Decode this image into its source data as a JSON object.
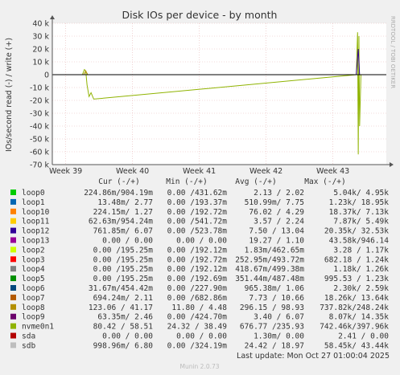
{
  "chart_data": {
    "type": "line",
    "title": "Disk IOs per device - by month",
    "ylabel": "IOs/second read (-) / write (+)",
    "watermark": "RRDTOOL / TOBI OETIKER",
    "footer": "Munin 2.0.73",
    "last_update": "Last update: Mon Oct 27 01:00:04 2025",
    "ylim": [
      -70000,
      40000
    ],
    "y_ticks": [
      {
        "label": "40 k",
        "value": 40000
      },
      {
        "label": "30 k",
        "value": 30000
      },
      {
        "label": "20 k",
        "value": 20000
      },
      {
        "label": "10 k",
        "value": 10000
      },
      {
        "label": "0",
        "value": 0
      },
      {
        "label": "-10 k",
        "value": -10000
      },
      {
        "label": "-20 k",
        "value": -20000
      },
      {
        "label": "-30 k",
        "value": -30000
      },
      {
        "label": "-40 k",
        "value": -40000
      },
      {
        "label": "-50 k",
        "value": -50000
      },
      {
        "label": "-60 k",
        "value": -60000
      },
      {
        "label": "-70 k",
        "value": -70000
      }
    ],
    "xlim": [
      0,
      5
    ],
    "x_ticks": [
      {
        "label": "Week 39",
        "value": 0.2
      },
      {
        "label": "Week 40",
        "value": 1.2
      },
      {
        "label": "Week 41",
        "value": 2.2
      },
      {
        "label": "Week 42",
        "value": 3.2
      },
      {
        "label": "Week 43",
        "value": 4.2
      }
    ],
    "table_headers": [
      "Cur (-/+)",
      "Min (-/+)",
      "Avg (-/+)",
      "Max (-/+)"
    ],
    "legend": [
      {
        "name": "loop0",
        "color": "#00cc00",
        "cur": "224.86m/904.19m",
        "min": "0.00 /431.62m",
        "avg": "2.13 /  2.02",
        "max": "5.04k/  4.95k"
      },
      {
        "name": "loop1",
        "color": "#0066b3",
        "cur": "13.48m/  2.77",
        "min": "0.00 /193.37m",
        "avg": "510.99m/  7.75",
        "max": "1.23k/ 18.95k"
      },
      {
        "name": "loop10",
        "color": "#ff8000",
        "cur": "224.15m/  1.27",
        "min": "0.00 /192.72m",
        "avg": "76.02 /  4.29",
        "max": "18.37k/  7.13k"
      },
      {
        "name": "loop11",
        "color": "#ffcc00",
        "cur": "62.63m/954.24m",
        "min": "0.00 /541.72m",
        "avg": "3.57 /  2.24",
        "max": "7.87k/  5.49k"
      },
      {
        "name": "loop12",
        "color": "#330099",
        "cur": "761.85m/  6.07",
        "min": "0.00 /523.78m",
        "avg": "7.50 / 13.04",
        "max": "20.35k/ 32.53k"
      },
      {
        "name": "loop13",
        "color": "#990099",
        "cur": "0.00 /  0.00",
        "min": "0.00 /  0.00",
        "avg": "19.27 /  1.10",
        "max": "43.58k/946.14"
      },
      {
        "name": "loop2",
        "color": "#ccff00",
        "cur": "0.00 /195.25m",
        "min": "0.00 /192.12m",
        "avg": "1.83m/462.65m",
        "max": "3.28 /  1.17k"
      },
      {
        "name": "loop3",
        "color": "#ff0000",
        "cur": "0.00 /195.25m",
        "min": "0.00 /192.72m",
        "avg": "252.95m/493.72m",
        "max": "682.18 /  1.24k"
      },
      {
        "name": "loop4",
        "color": "#808080",
        "cur": "0.00 /195.25m",
        "min": "0.00 /192.12m",
        "avg": "418.67m/499.38m",
        "max": "1.18k/  1.26k"
      },
      {
        "name": "loop5",
        "color": "#008f00",
        "cur": "0.00 /195.25m",
        "min": "0.00 /192.69m",
        "avg": "351.44m/487.48m",
        "max": "995.53 /  1.23k"
      },
      {
        "name": "loop6",
        "color": "#00487d",
        "cur": "31.67m/454.42m",
        "min": "0.00 /227.90m",
        "avg": "965.38m/  1.06",
        "max": "2.30k/  2.59k"
      },
      {
        "name": "loop7",
        "color": "#b35a00",
        "cur": "694.24m/  2.11",
        "min": "0.00 /682.86m",
        "avg": "7.73 / 10.66",
        "max": "18.26k/ 13.64k"
      },
      {
        "name": "loop8",
        "color": "#b38f00",
        "cur": "123.06 / 41.17",
        "min": "11.80 /  4.48",
        "avg": "296.15 / 98.93",
        "max": "737.82k/248.24k"
      },
      {
        "name": "loop9",
        "color": "#6b006b",
        "cur": "63.35m/  2.46",
        "min": "0.00 /424.70m",
        "avg": "3.40 /  6.07",
        "max": "8.07k/ 14.35k"
      },
      {
        "name": "nvme0n1",
        "color": "#8fb300",
        "cur": "80.42 / 58.51",
        "min": "24.32 / 38.49",
        "avg": "676.77 /235.93",
        "max": "742.46k/397.96k"
      },
      {
        "name": "sda",
        "color": "#b30000",
        "cur": "0.00 /  0.00",
        "min": "0.00 /  0.00",
        "avg": "1.30m/  0.00",
        "max": "2.41 /  0.00"
      },
      {
        "name": "sdb",
        "color": "#bebebe",
        "cur": "998.96m/  6.80",
        "min": "0.00 /324.19m",
        "avg": "24.42 / 18.97",
        "max": "58.45k/ 43.44k"
      }
    ],
    "series": [
      {
        "name": "nvme0n1",
        "color": "#8fb300",
        "x": [
          0.45,
          0.48,
          0.5,
          0.52,
          0.55,
          0.58,
          0.62,
          4.55,
          4.57,
          4.58,
          4.59,
          4.6,
          4.62
        ],
        "y": [
          0,
          4000,
          3000,
          -8000,
          -17000,
          -14000,
          -19000,
          0,
          33000,
          -62000,
          30000,
          -40000,
          0
        ]
      },
      {
        "name": "loop12",
        "color": "#330099",
        "x": [
          4.55,
          4.58,
          4.6
        ],
        "y": [
          0,
          20000,
          0
        ]
      },
      {
        "name": "loop8",
        "color": "#b38f00",
        "x": [
          0.47,
          0.5,
          0.53
        ],
        "y": [
          0,
          3000,
          0
        ]
      }
    ]
  }
}
